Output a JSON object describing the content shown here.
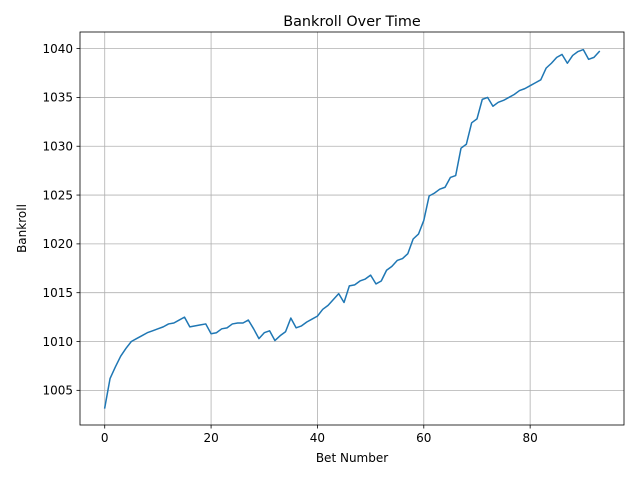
{
  "chart_data": {
    "type": "line",
    "title": "Bankroll Over Time",
    "xlabel": "Bet Number",
    "ylabel": "Bankroll",
    "xlim": [
      -4.65,
      97.65
    ],
    "ylim": [
      1001.45,
      1041.7
    ],
    "xticks": [
      0,
      20,
      40,
      60,
      80
    ],
    "yticks": [
      1005,
      1010,
      1015,
      1020,
      1025,
      1030,
      1035,
      1040
    ],
    "grid": true,
    "legend": "none",
    "series": [
      {
        "color": "#1f77b4",
        "x": [
          0,
          1,
          2,
          3,
          4,
          5,
          6,
          7,
          8,
          9,
          10,
          11,
          12,
          13,
          14,
          15,
          16,
          17,
          18,
          19,
          20,
          21,
          22,
          23,
          24,
          25,
          26,
          27,
          28,
          29,
          30,
          31,
          32,
          33,
          34,
          35,
          36,
          37,
          38,
          39,
          40,
          41,
          42,
          43,
          44,
          45,
          46,
          47,
          48,
          49,
          50,
          51,
          52,
          53,
          54,
          55,
          56,
          57,
          58,
          59,
          60,
          61,
          62,
          63,
          64,
          65,
          66,
          67,
          68,
          69,
          70,
          71,
          72,
          73,
          74,
          75,
          76,
          77,
          78,
          79,
          80,
          81,
          82,
          83,
          84,
          85,
          86,
          87,
          88,
          89,
          90,
          91,
          92,
          93
        ],
        "y": [
          1003.2,
          1006.2,
          1007.4,
          1008.5,
          1009.3,
          1010.0,
          1010.3,
          1010.6,
          1010.9,
          1011.1,
          1011.3,
          1011.5,
          1011.8,
          1011.9,
          1012.2,
          1012.5,
          1011.5,
          1011.6,
          1011.7,
          1011.8,
          1010.8,
          1010.9,
          1011.3,
          1011.4,
          1011.8,
          1011.9,
          1011.9,
          1012.2,
          1011.3,
          1010.3,
          1010.9,
          1011.1,
          1010.1,
          1010.6,
          1011.0,
          1012.4,
          1011.4,
          1011.6,
          1012.0,
          1012.3,
          1012.6,
          1013.3,
          1013.7,
          1014.3,
          1014.9,
          1014.0,
          1015.7,
          1015.8,
          1016.2,
          1016.4,
          1016.8,
          1015.9,
          1016.2,
          1017.3,
          1017.7,
          1018.3,
          1018.5,
          1019.0,
          1020.5,
          1021.0,
          1022.4,
          1024.9,
          1025.2,
          1025.6,
          1025.8,
          1026.8,
          1027.0,
          1029.8,
          1030.2,
          1032.4,
          1032.8,
          1034.8,
          1035.0,
          1034.1,
          1034.5,
          1034.7,
          1035.0,
          1035.3,
          1035.7,
          1035.9,
          1036.2,
          1036.5,
          1036.8,
          1038.0,
          1038.5,
          1039.1,
          1039.4,
          1038.5,
          1039.3,
          1039.7,
          1039.9,
          1038.9,
          1039.1,
          1039.7
        ]
      }
    ]
  }
}
